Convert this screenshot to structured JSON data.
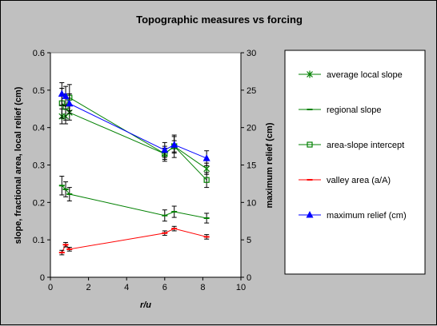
{
  "chart_data": {
    "type": "scatter",
    "title": "Topographic measures vs forcing",
    "xlabel": "r/u",
    "ylabel": "slope, fractional area, local relief (cm)",
    "y2label": "maximum relief (cm)",
    "xlim": [
      0,
      10
    ],
    "ylim": [
      0,
      0.6
    ],
    "y2lim": [
      0,
      30
    ],
    "x_ticks": [
      "0",
      "2",
      "4",
      "6",
      "8",
      "10"
    ],
    "y_ticks": [
      "0",
      "0.1",
      "0.2",
      "0.3",
      "0.4",
      "0.5",
      "0.6"
    ],
    "y2_ticks": [
      "0",
      "5",
      "10",
      "15",
      "20",
      "25",
      "30"
    ],
    "grid": false,
    "legend_placement": "right",
    "series": [
      {
        "name": "average local slope",
        "axis": "left",
        "color": "#008000",
        "marker": "asterisk",
        "x": [
          0.6,
          0.8,
          1.0,
          6.0,
          6.5,
          8.2
        ],
        "y": [
          0.43,
          0.43,
          0.44,
          0.33,
          0.35,
          0.29
        ],
        "err": [
          0.02,
          0.02,
          0.02,
          0.015,
          0.015,
          0.015
        ]
      },
      {
        "name": "regional slope",
        "axis": "left",
        "color": "#008000",
        "marker": "dash",
        "x": [
          0.6,
          0.8,
          1.0,
          6.0,
          6.5,
          8.2
        ],
        "y": [
          0.245,
          0.235,
          0.222,
          0.165,
          0.175,
          0.158
        ],
        "err": [
          0.025,
          0.02,
          0.018,
          0.015,
          0.015,
          0.013
        ]
      },
      {
        "name": "area-slope intercept",
        "axis": "left",
        "color": "#008000",
        "marker": "square",
        "x": [
          0.6,
          0.8,
          1.0,
          6.0,
          6.5,
          8.2
        ],
        "y": [
          0.465,
          0.455,
          0.48,
          0.33,
          0.35,
          0.26
        ],
        "err": [
          0.04,
          0.035,
          0.035,
          0.02,
          0.03,
          0.02
        ]
      },
      {
        "name": "valley area (a/A)",
        "axis": "left",
        "color": "#ff0000",
        "marker": "dash",
        "x": [
          0.6,
          0.8,
          1.0,
          6.0,
          6.5,
          8.2
        ],
        "y": [
          0.066,
          0.087,
          0.075,
          0.118,
          0.13,
          0.108
        ],
        "err": [
          0.006,
          0.006,
          0.005,
          0.006,
          0.006,
          0.006
        ]
      },
      {
        "name": "maximum relief (cm)",
        "axis": "right",
        "color": "#0000ff",
        "marker": "triangle",
        "x": [
          0.6,
          0.8,
          1.0,
          6.0,
          6.5,
          8.2
        ],
        "y": [
          24.5,
          24.2,
          23.2,
          17.0,
          17.7,
          15.9
        ],
        "err": [
          1.5,
          1.3,
          1.3,
          1.0,
          1.1,
          1.0
        ]
      }
    ]
  }
}
